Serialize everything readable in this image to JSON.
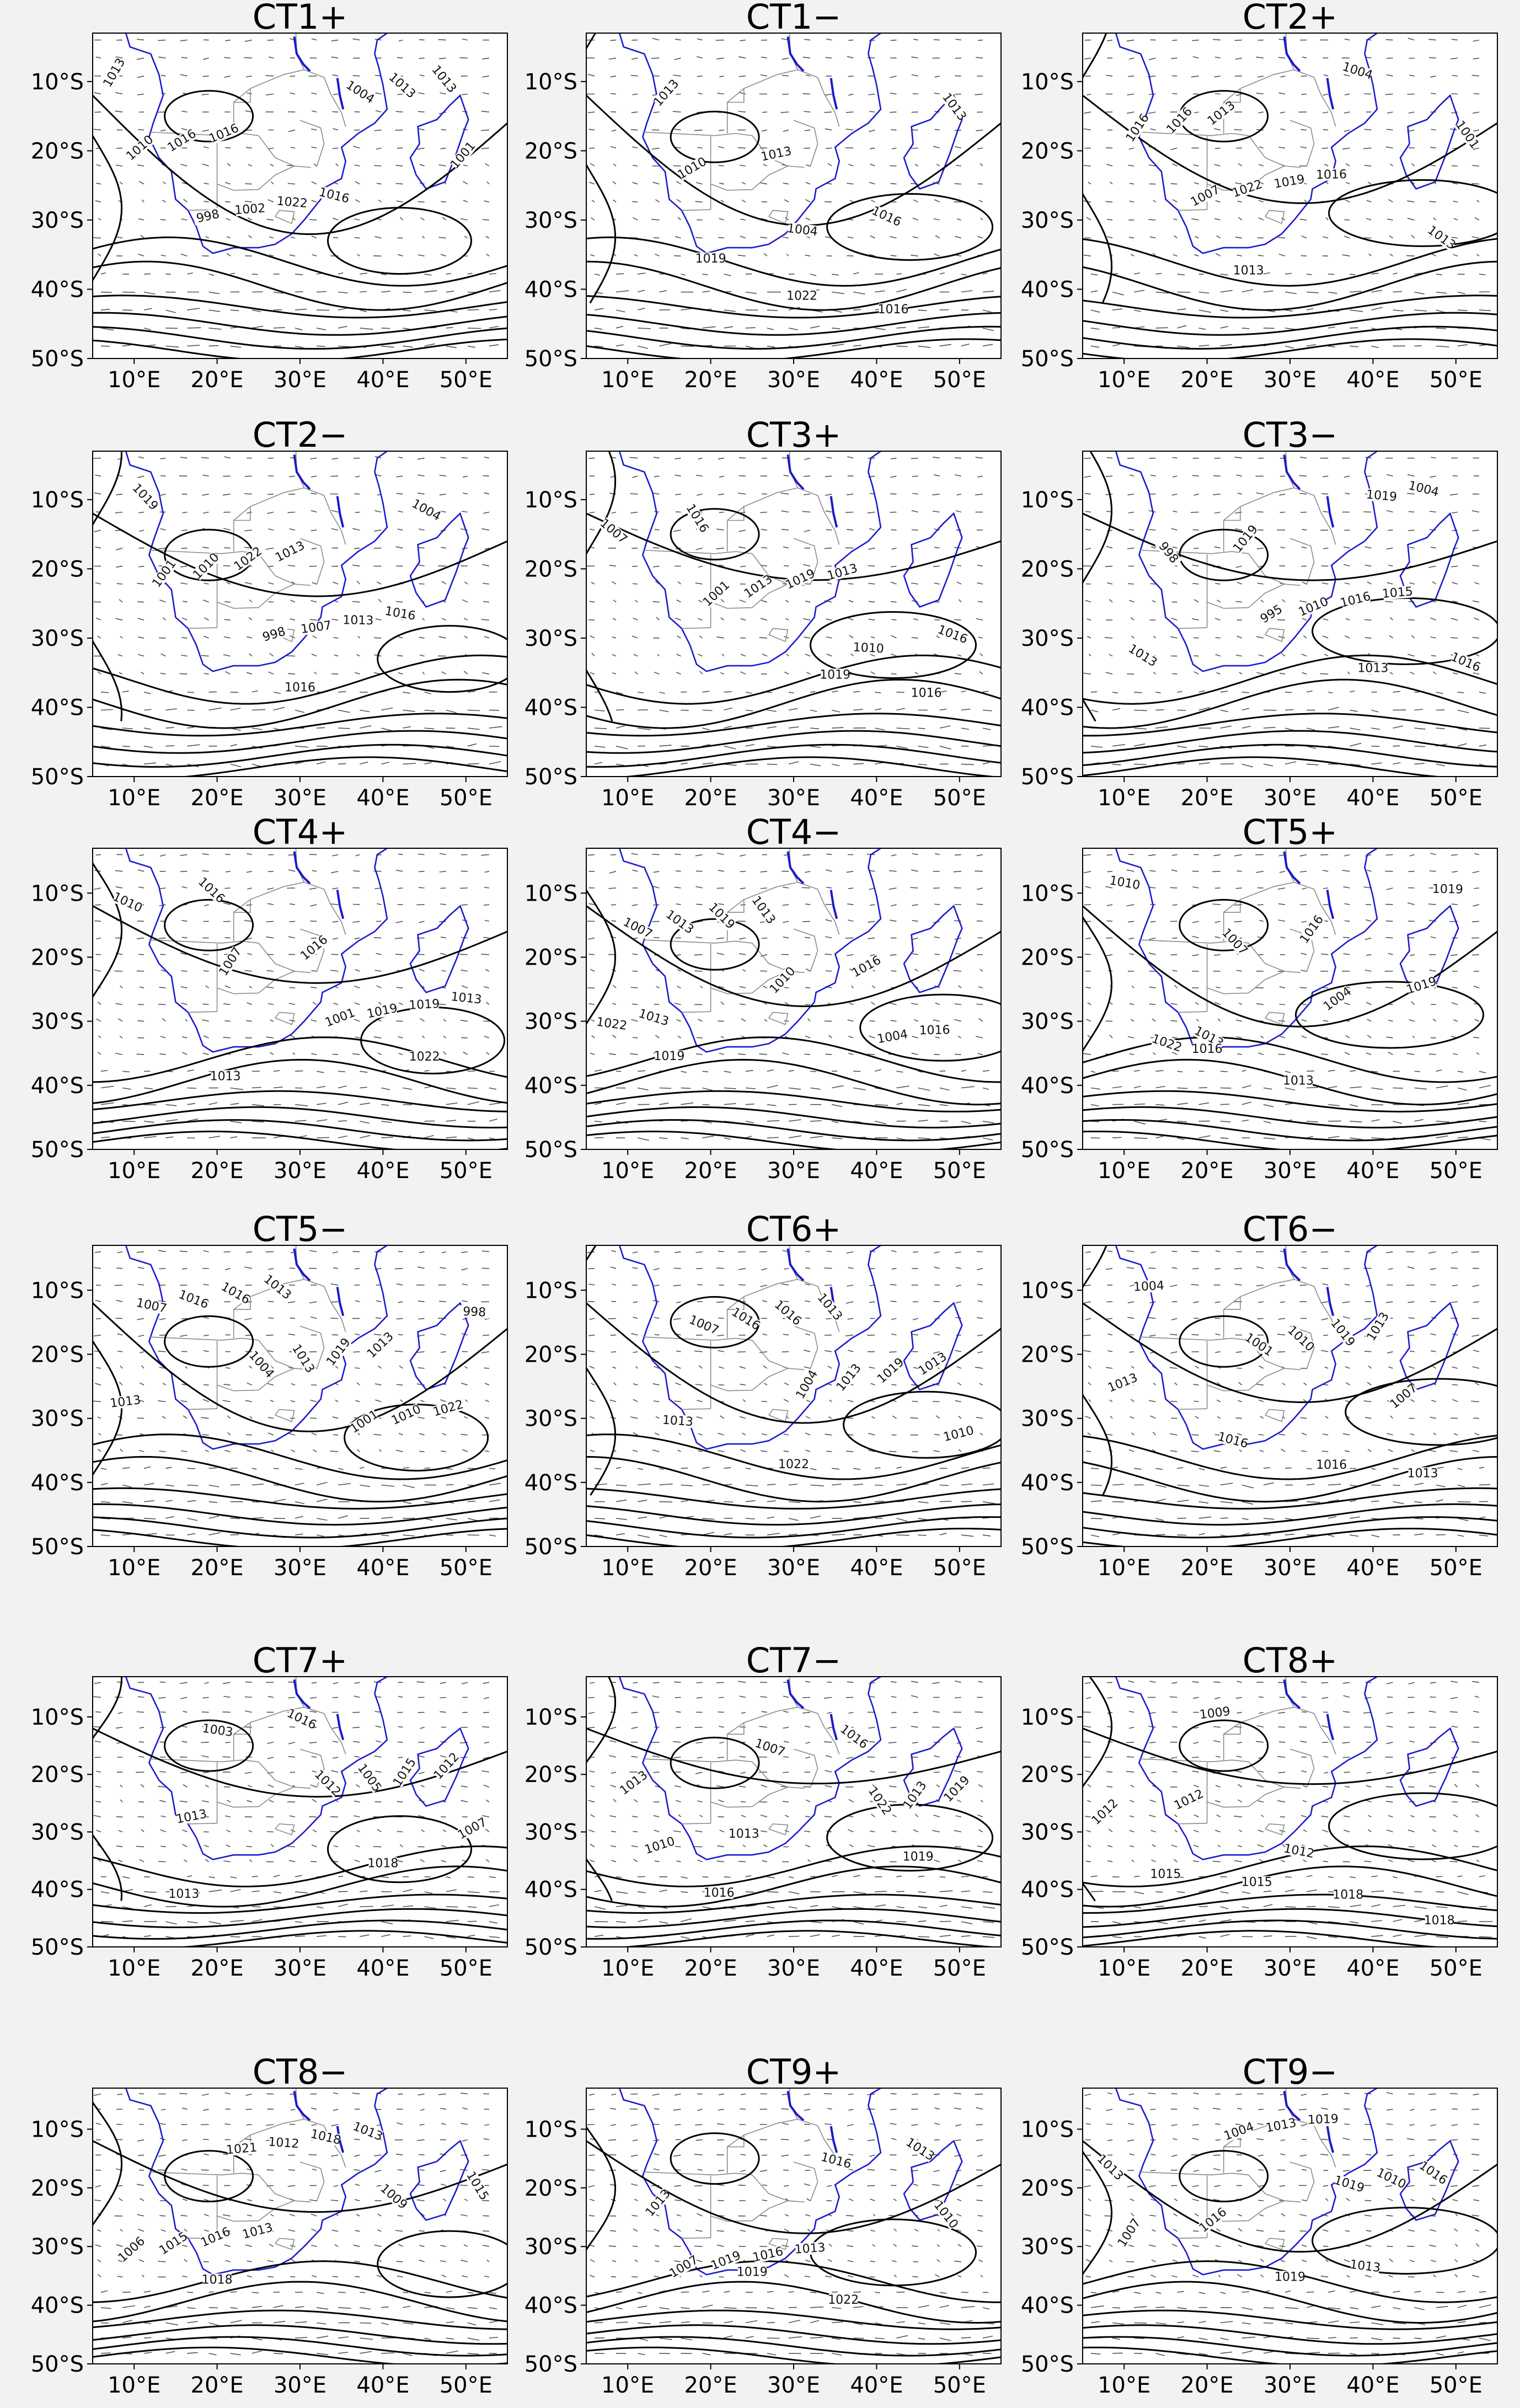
{
  "figure": {
    "panels": [
      {
        "title": "CT1+",
        "isobar_labels": [
          "1013",
          "1016",
          "1016",
          "1013",
          "1016",
          "1022",
          "1013",
          "1010",
          "1002",
          "1004",
          "1001",
          "998"
        ]
      },
      {
        "title": "CT1−",
        "isobar_labels": [
          "1013",
          "1013",
          "1016",
          "1019",
          "1022",
          "1016",
          "1013",
          "1010",
          "1004"
        ]
      },
      {
        "title": "CT2+",
        "isobar_labels": [
          "1013",
          "1016",
          "1013",
          "1016",
          "1019",
          "1013",
          "1016",
          "1022",
          "1004",
          "1001",
          "1007"
        ]
      },
      {
        "title": "CT2−",
        "isobar_labels": [
          "1013",
          "1016",
          "1019",
          "1022",
          "1013",
          "1016",
          "1010",
          "1007",
          "1004",
          "1001",
          "998"
        ]
      },
      {
        "title": "CT3+",
        "isobar_labels": [
          "1013",
          "1016",
          "1016",
          "1019",
          "1019",
          "1016",
          "1013",
          "1010",
          "1007",
          "1001"
        ]
      },
      {
        "title": "CT3−",
        "isobar_labels": [
          "1015",
          "1013",
          "1019",
          "1016",
          "1016",
          "1013",
          "1010",
          "1004",
          "998",
          "995",
          "1019"
        ]
      },
      {
        "title": "CT4+",
        "isobar_labels": [
          "1013",
          "1016",
          "1016",
          "1019",
          "1022",
          "1013",
          "1019",
          "1010",
          "1007",
          "1001"
        ]
      },
      {
        "title": "CT4−",
        "isobar_labels": [
          "1013",
          "1013",
          "1016",
          "1022",
          "1019",
          "1019",
          "1016",
          "1013",
          "1010",
          "1004",
          "1007"
        ]
      },
      {
        "title": "CT5+",
        "isobar_labels": [
          "1013",
          "1016",
          "1019",
          "1022",
          "1016",
          "1013",
          "1010",
          "1007",
          "1004",
          "1019"
        ]
      },
      {
        "title": "CT5−",
        "isobar_labels": [
          "1013",
          "1013",
          "1013",
          "1016",
          "1019",
          "1022",
          "1016",
          "1013",
          "1010",
          "1007",
          "1004",
          "1001",
          "998"
        ]
      },
      {
        "title": "CT6+",
        "isobar_labels": [
          "1013",
          "1013",
          "1013",
          "1016",
          "1019",
          "1022",
          "1016",
          "1013",
          "1010",
          "1007",
          "1004"
        ]
      },
      {
        "title": "CT6−",
        "isobar_labels": [
          "1013",
          "1013",
          "1016",
          "1019",
          "1016",
          "1013",
          "1010",
          "1007",
          "1004",
          "1001"
        ]
      },
      {
        "title": "CT7+",
        "isobar_labels": [
          "1012",
          "1013",
          "1016",
          "1015",
          "1018",
          "1013",
          "1005",
          "1007",
          "1003",
          "1012"
        ]
      },
      {
        "title": "CT7−",
        "isobar_labels": [
          "1013",
          "1013",
          "1016",
          "1019",
          "1019",
          "1016",
          "1013",
          "1010",
          "1007",
          "1022"
        ]
      },
      {
        "title": "CT8+",
        "isobar_labels": [
          "1012",
          "1012",
          "1015",
          "1015",
          "1018",
          "1018",
          "1012",
          "1009"
        ]
      },
      {
        "title": "CT8−",
        "isobar_labels": [
          "1013",
          "1013",
          "1015",
          "1016",
          "1018",
          "1018",
          "1015",
          "1012",
          "1009",
          "1006",
          "1021"
        ]
      },
      {
        "title": "CT9+",
        "isobar_labels": [
          "1013",
          "1013",
          "1013",
          "1016",
          "1019",
          "1022",
          "1019",
          "1016",
          "1010",
          "1007"
        ]
      },
      {
        "title": "CT9−",
        "isobar_labels": [
          "1013",
          "1013",
          "1016",
          "1019",
          "1016",
          "1019",
          "1013",
          "1010",
          "1007",
          "1004",
          "1019"
        ]
      }
    ],
    "axes": {
      "lon_ticks": [
        "10°E",
        "20°E",
        "30°E",
        "40°E",
        "50°E"
      ],
      "lat_ticks": [
        "10°S",
        "20°S",
        "30°S",
        "40°S",
        "50°S"
      ],
      "lon_range": [
        5,
        55
      ],
      "lat_range": [
        -50,
        -3
      ]
    },
    "colors": {
      "coastline": "#1a1acc",
      "borders": "#8a8a8a",
      "isobars": "#000000",
      "wind_vectors": "#555555",
      "background": "#f2f2f2",
      "map_background": "#ffffff"
    }
  }
}
